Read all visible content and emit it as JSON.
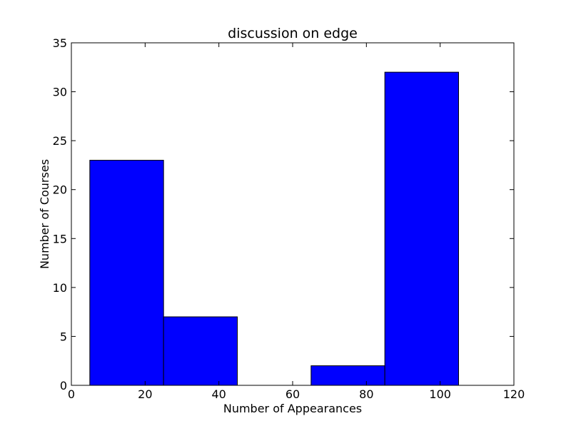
{
  "chart_data": {
    "type": "bar",
    "title": "discussion on edge",
    "xlabel": "Number of Appearances",
    "ylabel": "Number of Courses",
    "xlim": [
      0,
      120
    ],
    "ylim": [
      0,
      35
    ],
    "xticks": [
      0,
      20,
      40,
      60,
      80,
      100,
      120
    ],
    "yticks": [
      0,
      5,
      10,
      15,
      20,
      25,
      30,
      35
    ],
    "bins": [
      {
        "x0": 5,
        "x1": 25,
        "value": 23
      },
      {
        "x0": 25,
        "x1": 45,
        "value": 7
      },
      {
        "x0": 45,
        "x1": 65,
        "value": 0
      },
      {
        "x0": 65,
        "x1": 85,
        "value": 2
      },
      {
        "x0": 85,
        "x1": 105,
        "value": 32
      }
    ],
    "bar_color": "#0000ff",
    "edge_color": "#000000",
    "grid": false
  }
}
